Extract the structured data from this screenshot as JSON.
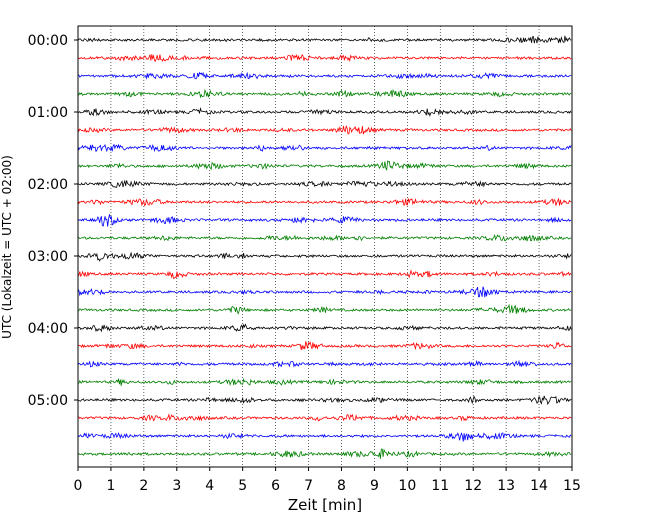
{
  "chart_data": {
    "type": "line",
    "title": "",
    "xlabel": "Zeit  [min]",
    "ylabel": "UTC (Lokalzeit = UTC + 02:00)",
    "xlim": [
      0,
      15
    ],
    "x_ticks": [
      "0",
      "1",
      "2",
      "3",
      "4",
      "5",
      "6",
      "7",
      "8",
      "9",
      "10",
      "11",
      "12",
      "13",
      "14",
      "15"
    ],
    "y_ticks": [
      "00:00",
      "01:00",
      "02:00",
      "03:00",
      "04:00",
      "05:00"
    ],
    "traces_per_hour": 4,
    "trace_minutes": 15,
    "trace_count": 24,
    "trace_colors": [
      "#000000",
      "#ff0000",
      "#0000ff",
      "#008000"
    ],
    "vertical_grid": "dotted",
    "legend": "none"
  }
}
